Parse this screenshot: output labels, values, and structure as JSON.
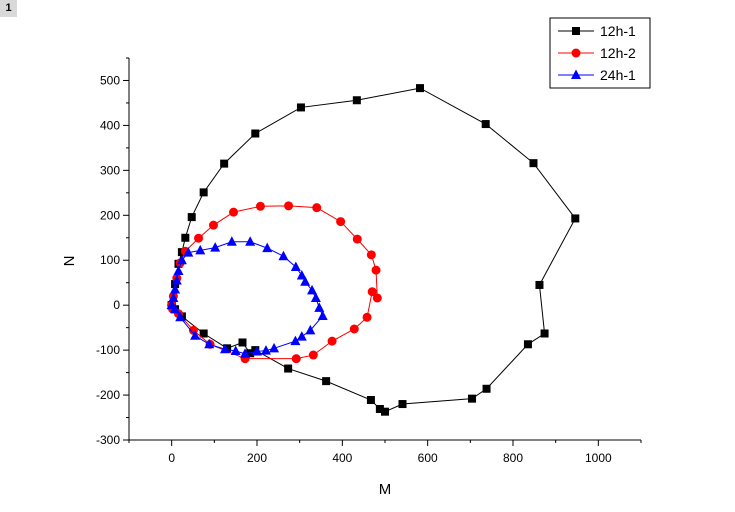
{
  "panel": {
    "badge": "1"
  },
  "chart_data": {
    "type": "scatter",
    "title": "",
    "xlabel": "M",
    "ylabel": "N",
    "xlim": [
      -100,
      1100
    ],
    "ylim": [
      -300,
      550
    ],
    "xticks": [
      0,
      200,
      400,
      600,
      800,
      1000
    ],
    "yticks": [
      -300,
      -200,
      -100,
      0,
      100,
      200,
      300,
      400,
      500
    ],
    "grid": false,
    "legend_position": "top-right",
    "series": [
      {
        "name": "12h-1",
        "color": "#000000",
        "marker": "square",
        "x": [
          0,
          8,
          16,
          24,
          32,
          47,
          75,
          123,
          196,
          303,
          434,
          582,
          736,
          848,
          946,
          862,
          874,
          835,
          738,
          704,
          541,
          500,
          488,
          467,
          362,
          273,
          196,
          184,
          166,
          130,
          75,
          24,
          8,
          0
        ],
        "y": [
          0,
          47,
          92,
          118,
          150,
          196,
          251,
          315,
          382,
          440,
          456,
          483,
          403,
          316,
          193,
          45,
          -63,
          -87,
          -186,
          -208,
          -220,
          -237,
          -231,
          -211,
          -169,
          -141,
          -100,
          -107,
          -83,
          -96,
          -63,
          -25,
          -9,
          0
        ]
      },
      {
        "name": "12h-2",
        "color": "#ff0000",
        "marker": "circle",
        "x": [
          0,
          4,
          12,
          20,
          32,
          63,
          98,
          145,
          208,
          274,
          340,
          396,
          435,
          468,
          479,
          482,
          470,
          458,
          428,
          376,
          332,
          292,
          172,
          90,
          51,
          16,
          2,
          0
        ],
        "y": [
          0,
          20,
          60,
          94,
          120,
          149,
          178,
          207,
          220,
          221,
          217,
          186,
          147,
          112,
          78,
          16,
          30,
          -27,
          -53,
          -80,
          -111,
          -119,
          -119,
          -87,
          -56,
          -19,
          -8,
          0
        ]
      },
      {
        "name": "24h-1",
        "color": "#0000ff",
        "marker": "triangle",
        "x": [
          0,
          4,
          8,
          12,
          16,
          24,
          39,
          67,
          102,
          141,
          184,
          224,
          262,
          291,
          305,
          313,
          329,
          338,
          346,
          354,
          325,
          305,
          290,
          240,
          221,
          200,
          172,
          150,
          125,
          88,
          55,
          20,
          8,
          0
        ],
        "y": [
          0,
          16,
          35,
          55,
          76,
          100,
          117,
          122,
          128,
          141,
          141,
          127,
          109,
          85,
          66,
          52,
          33,
          16,
          -6,
          -24,
          -56,
          -70,
          -80,
          -96,
          -101,
          -103,
          -108,
          -102,
          -98,
          -87,
          -68,
          -27,
          -9,
          0
        ]
      }
    ]
  }
}
